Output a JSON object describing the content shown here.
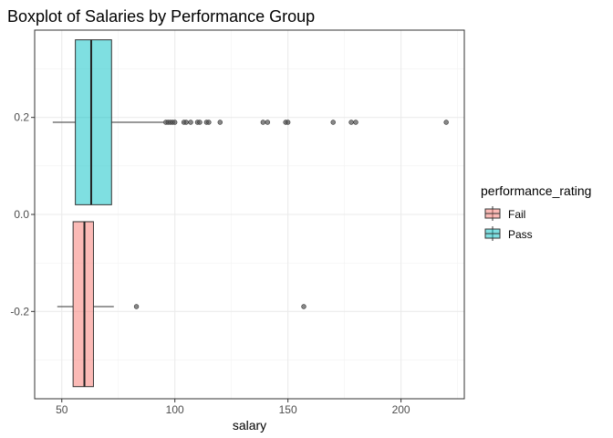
{
  "chart_data": {
    "type": "boxplot",
    "orientation": "horizontal",
    "title": "Boxplot of Salaries by Performance Group",
    "xlabel": "salary",
    "ylabel": "",
    "xlim": [
      38,
      228
    ],
    "ylim": [
      -0.38,
      0.38
    ],
    "x_ticks": [
      50,
      100,
      150,
      200
    ],
    "y_ticks": [
      0.2,
      0.0,
      -0.2
    ],
    "y_tick_labels": [
      "0.2",
      "0.0",
      "-0.2"
    ],
    "grid": true,
    "legend": {
      "title": "performance_rating",
      "position": "right"
    },
    "groups": [
      {
        "name": "Fail",
        "color": "#F8766D",
        "y_center": -0.19,
        "y_range": [
          -0.355,
          -0.015
        ],
        "whisker_low": 48,
        "q1": 55,
        "median": 60,
        "q3": 64,
        "whisker_high": 73,
        "outliers": [
          83,
          157
        ]
      },
      {
        "name": "Pass",
        "color": "#00BFC4",
        "y_center": 0.19,
        "y_range": [
          0.02,
          0.36
        ],
        "whisker_low": 46,
        "q1": 56,
        "median": 63,
        "q3": 72,
        "whisker_high": 95,
        "outliers": [
          96,
          97,
          98,
          99,
          100,
          104,
          105,
          107,
          110,
          111,
          114,
          115,
          120,
          139,
          141,
          149,
          150,
          170,
          178,
          180,
          220
        ]
      }
    ]
  }
}
